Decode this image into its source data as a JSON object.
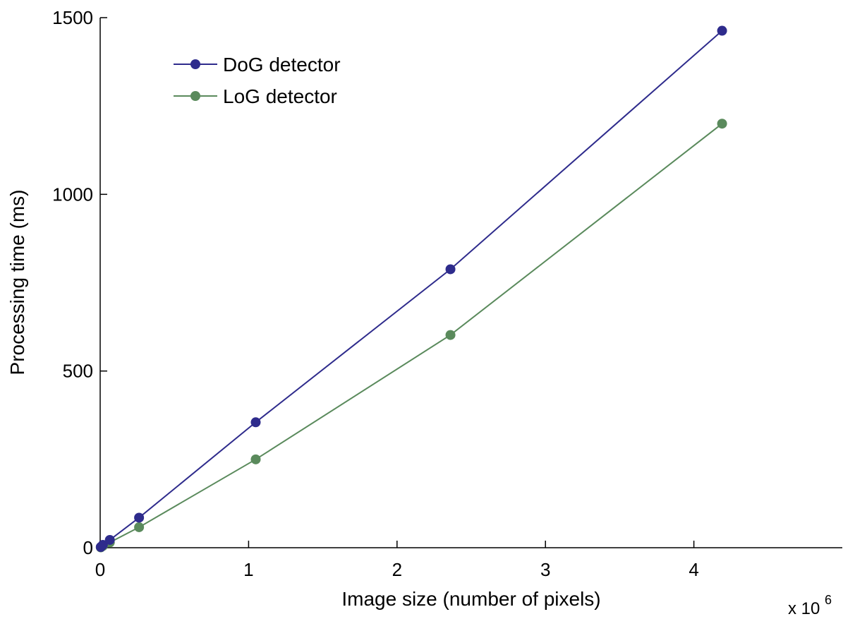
{
  "chart_data": {
    "type": "line",
    "xlabel": "Image size (number of pixels)",
    "ylabel": "Processing time (ms)",
    "x_multiplier": {
      "base": "x 10",
      "exponent": "6"
    },
    "xlim": [
      0,
      5
    ],
    "ylim": [
      0,
      1500
    ],
    "x_ticks": [
      0,
      1,
      2,
      3,
      4
    ],
    "x_tick_labels": [
      "0",
      "1",
      "2",
      "3",
      "4"
    ],
    "y_ticks": [
      0,
      500,
      1000,
      1500
    ],
    "y_tick_labels": [
      "0",
      "500",
      "1000",
      "1500"
    ],
    "grid": false,
    "legend_position": "top-left",
    "x": [
      0.004,
      0.018,
      0.065,
      0.262,
      1.048,
      2.36,
      4.19
    ],
    "series": [
      {
        "name": "DoG detector",
        "color": "#2e2b8c",
        "values": [
          2,
          8,
          22,
          85,
          355,
          788,
          1463
        ]
      },
      {
        "name": "LoG detector",
        "color": "#5a8a5c",
        "values": [
          1,
          5,
          15,
          58,
          250,
          602,
          1200
        ]
      }
    ]
  }
}
